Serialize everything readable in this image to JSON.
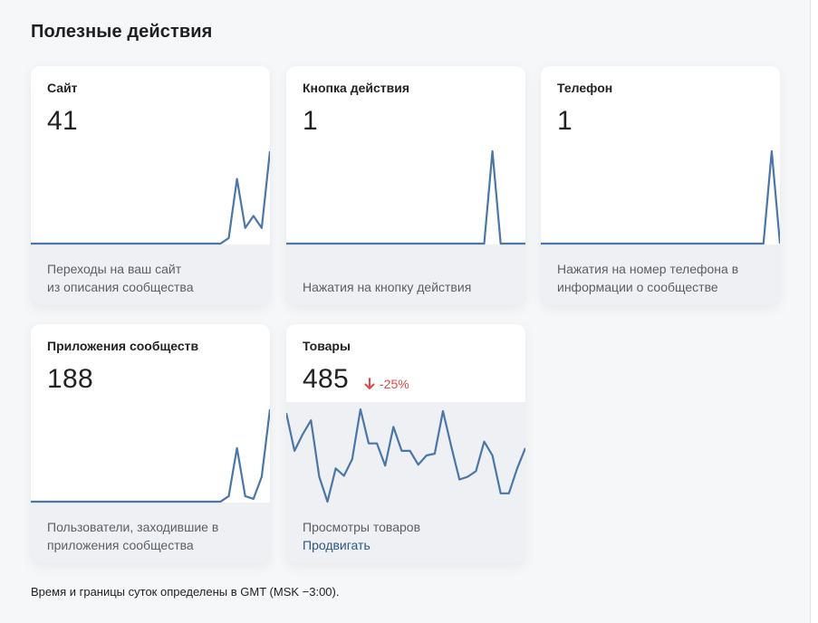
{
  "section": {
    "title": "Полезные действия"
  },
  "cards": [
    {
      "title": "Сайт",
      "value": "41",
      "desc_lines": [
        "Переходы на ваш сайт",
        "из описания сообщества"
      ],
      "sparkline": [
        0,
        0,
        0,
        0,
        0,
        0,
        0,
        0,
        0,
        0,
        0,
        0,
        0,
        0,
        0,
        0,
        0,
        0,
        0,
        0,
        0,
        0,
        0,
        0,
        0.06,
        0.7,
        0.17,
        0.3,
        0.17,
        1.0
      ]
    },
    {
      "title": "Кнопка действия",
      "value": "1",
      "desc_lines": [
        "Нажатия на кнопку действия"
      ],
      "sparkline": [
        0,
        0,
        0,
        0,
        0,
        0,
        0,
        0,
        0,
        0,
        0,
        0,
        0,
        0,
        0,
        0,
        0,
        0,
        0,
        0,
        0,
        0,
        0,
        0,
        0,
        1.0,
        0,
        0,
        0,
        0
      ]
    },
    {
      "title": "Телефон",
      "value": "1",
      "desc_lines": [
        "Нажатия на номер телефона в",
        "информации о сообществе"
      ],
      "sparkline": [
        0,
        0,
        0,
        0,
        0,
        0,
        0,
        0,
        0,
        0,
        0,
        0,
        0,
        0,
        0,
        0,
        0,
        0,
        0,
        0,
        0,
        0,
        0,
        0,
        0,
        0,
        0,
        0,
        1.0,
        0
      ]
    },
    {
      "title": "Приложения сообществ",
      "value": "188",
      "desc_lines": [
        "Пользователи, заходившие в",
        "приложения сообщества"
      ],
      "sparkline": [
        0,
        0,
        0,
        0,
        0,
        0,
        0,
        0,
        0,
        0,
        0,
        0,
        0,
        0,
        0,
        0,
        0,
        0,
        0,
        0,
        0,
        0,
        0,
        0,
        0.06,
        0.58,
        0.06,
        0.03,
        0.27,
        1.0
      ]
    },
    {
      "title": "Товары",
      "value": "485",
      "delta": "-25%",
      "desc_lines": [
        "Просмотры товаров"
      ],
      "link": "Продвигать",
      "sparkline": [
        0.96,
        0.55,
        0.73,
        0.88,
        0.27,
        0,
        0.36,
        0.28,
        0.46,
        1.0,
        0.63,
        0.63,
        0.39,
        0.81,
        0.55,
        0.55,
        0.4,
        0.5,
        0.52,
        0.98,
        0.6,
        0.24,
        0.27,
        0.33,
        0.65,
        0.5,
        0.09,
        0.09,
        0.36,
        0.58
      ]
    }
  ],
  "footer": {
    "note": "Время и границы суток определены в GMT (MSK −3:00)."
  },
  "colors": {
    "line": "#4a76a8",
    "delta_negative": "#e64646",
    "link": "#2a5885"
  },
  "icons": {
    "delta": "arrow-down-icon"
  }
}
